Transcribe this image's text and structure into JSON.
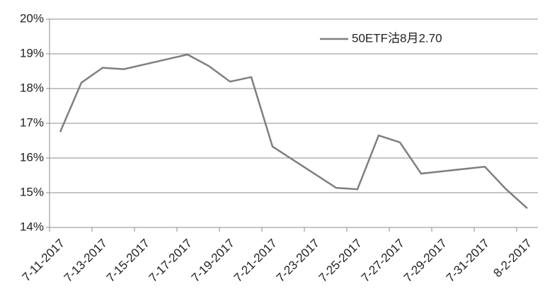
{
  "chart_data": {
    "type": "line",
    "x": [
      "7-11-2017",
      "7-12-2017",
      "7-13-2017",
      "7-14-2017",
      "7-17-2017",
      "7-18-2017",
      "7-19-2017",
      "7-20-2017",
      "7-21-2017",
      "7-24-2017",
      "7-25-2017",
      "7-26-2017",
      "7-27-2017",
      "7-28-2017",
      "7-31-2017",
      "8-1-2017",
      "8-2-2017"
    ],
    "series": [
      {
        "name": "50ETF沽8月2.70",
        "color": "#7f7f7f",
        "values": [
          16.75,
          18.17,
          18.6,
          18.56,
          18.98,
          18.65,
          18.2,
          18.33,
          16.33,
          15.14,
          15.1,
          16.65,
          16.45,
          15.55,
          15.75,
          15.1,
          14.55
        ]
      }
    ],
    "xticks": [
      "7-11-2017",
      "7-13-2017",
      "7-15-2017",
      "7-17-2017",
      "7-19-2017",
      "7-21-2017",
      "7-23-2017",
      "7-25-2017",
      "7-27-2017",
      "7-29-2017",
      "7-31-2017",
      "8-2-2017"
    ],
    "ylim": [
      14,
      20
    ],
    "yticks": [
      {
        "value": 14,
        "label": "14%"
      },
      {
        "value": 15,
        "label": "15%"
      },
      {
        "value": 16,
        "label": "16%"
      },
      {
        "value": 17,
        "label": "17%"
      },
      {
        "value": 18,
        "label": "18%"
      },
      {
        "value": 19,
        "label": "19%"
      },
      {
        "value": 20,
        "label": "20%"
      }
    ],
    "grid": true,
    "legend": "top-right"
  }
}
